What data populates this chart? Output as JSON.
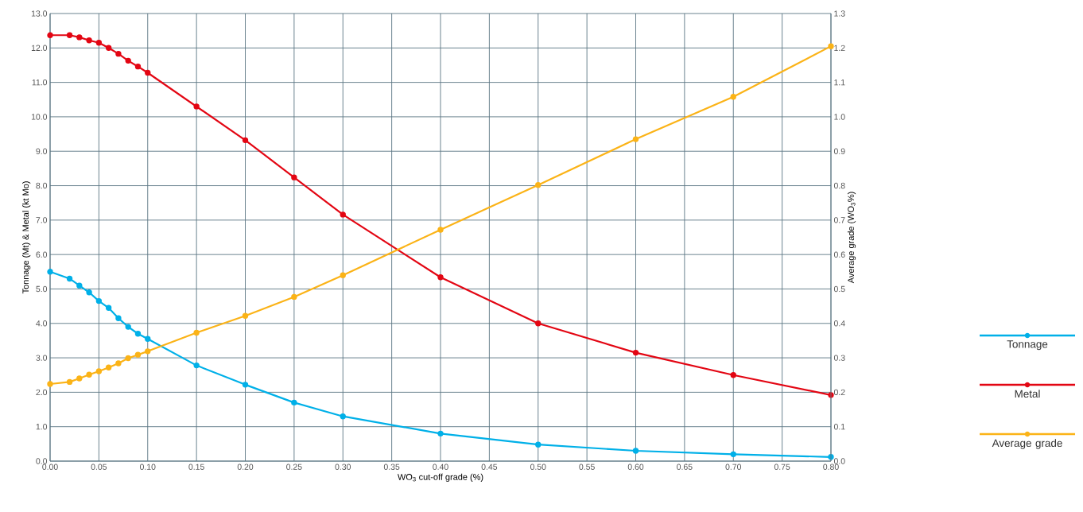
{
  "chart_data": {
    "type": "line",
    "xlabel": "WO$_{3}$ cut-off grade (%)",
    "ylabel": "Tonnage (Mt) & Metal (kt Mo)",
    "y2label": "Average grade (WO$_{3}$%)",
    "x": [
      0,
      0.02,
      0.03,
      0.04,
      0.05,
      0.06,
      0.07,
      0.08,
      0.09,
      0.1,
      0.15,
      0.2,
      0.25,
      0.3,
      0.4,
      0.5,
      0.6,
      0.7,
      0.8
    ],
    "series": [
      {
        "name": "Tonnage",
        "color": "#00b0e8",
        "values": [
          5.5,
          5.3,
          5.1,
          4.9,
          4.65,
          4.45,
          4.15,
          3.9,
          3.7,
          3.55,
          2.78,
          2.22,
          1.7,
          1.3,
          0.8,
          0.48,
          0.3,
          0.2,
          0.12
        ]
      },
      {
        "name": "Metal",
        "color": "#e30613",
        "values": [
          12.37,
          12.37,
          12.31,
          12.22,
          12.15,
          12.0,
          11.83,
          11.63,
          11.46,
          11.28,
          10.3,
          9.32,
          8.24,
          7.16,
          5.34,
          4.0,
          3.15,
          2.5,
          1.92
        ]
      },
      {
        "name": "Average grade",
        "color": "#fbb317",
        "axis": "y2",
        "values": [
          0.224,
          0.23,
          0.24,
          0.251,
          0.261,
          0.272,
          0.284,
          0.299,
          0.309,
          0.319,
          0.373,
          0.422,
          0.477,
          0.54,
          0.672,
          0.802,
          0.935,
          1.058,
          1.205
        ]
      }
    ],
    "xlim": [
      0,
      0.8
    ],
    "xticks": [
      {
        "value": 0,
        "label": "0.00"
      },
      {
        "value": 0.05,
        "label": "0.05"
      },
      {
        "value": 0.1,
        "label": "0.10"
      },
      {
        "value": 0.15,
        "label": "0.15"
      },
      {
        "value": 0.2,
        "label": "0.20"
      },
      {
        "value": 0.25,
        "label": "0.25"
      },
      {
        "value": 0.3,
        "label": "0.30"
      },
      {
        "value": 0.35,
        "label": "0.35"
      },
      {
        "value": 0.4,
        "label": "0.40"
      },
      {
        "value": 0.45,
        "label": "0.45"
      },
      {
        "value": 0.5,
        "label": "0.50"
      },
      {
        "value": 0.55,
        "label": "0.55"
      },
      {
        "value": 0.6,
        "label": "0.60"
      },
      {
        "value": 0.65,
        "label": "0.65"
      },
      {
        "value": 0.7,
        "label": "0.70"
      },
      {
        "value": 0.75,
        "label": "0.75"
      },
      {
        "value": 0.8,
        "label": "0.80"
      }
    ],
    "ylim": [
      0,
      13
    ],
    "yticks": [
      {
        "value": 0,
        "label": "0.0"
      },
      {
        "value": 1,
        "label": "1.0"
      },
      {
        "value": 2,
        "label": "2.0"
      },
      {
        "value": 3,
        "label": "3.0"
      },
      {
        "value": 4,
        "label": "4.0"
      },
      {
        "value": 5,
        "label": "5.0"
      },
      {
        "value": 6,
        "label": "6.0"
      },
      {
        "value": 7,
        "label": "7.0"
      },
      {
        "value": 8,
        "label": "8.0"
      },
      {
        "value": 9,
        "label": "9.0"
      },
      {
        "value": 10,
        "label": "10.0"
      },
      {
        "value": 11,
        "label": "11.0"
      },
      {
        "value": 12,
        "label": "12.0"
      },
      {
        "value": 13,
        "label": "13.0"
      }
    ],
    "y2lim": [
      0,
      1.3
    ],
    "y2ticks": [
      {
        "value": 0,
        "label": "0.0"
      },
      0.1,
      0.2,
      0.3,
      0.4,
      0.5,
      0.6,
      0.7,
      0.8,
      0.9,
      {
        "value": 1,
        "label": "1.0"
      },
      1.1,
      1.2,
      1.3
    ],
    "grid": true,
    "legend": "right",
    "marker": "circle",
    "line_style": "solid"
  }
}
